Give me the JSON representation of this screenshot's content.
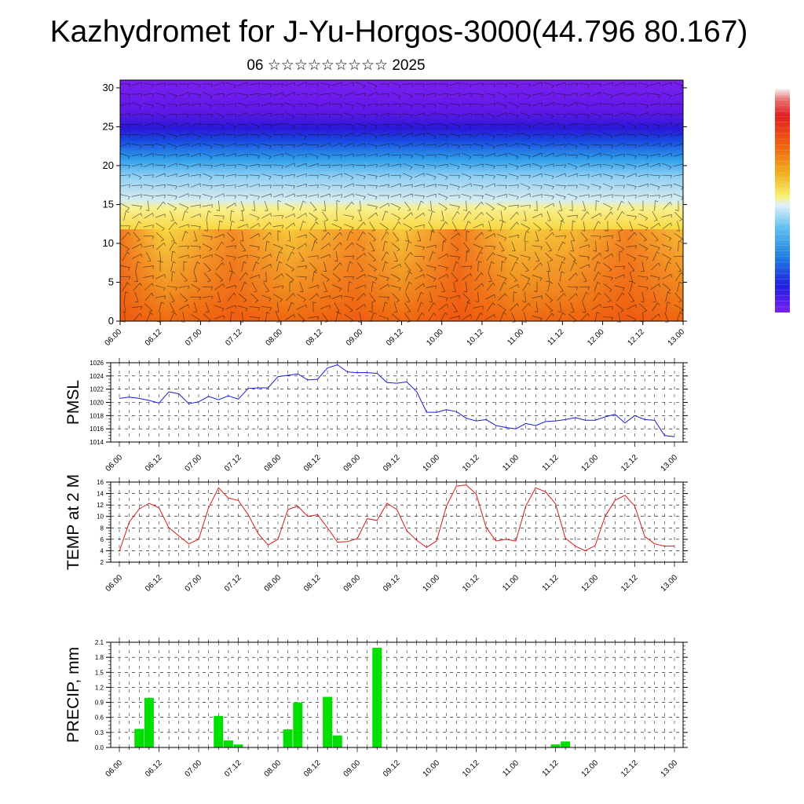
{
  "title": "Kazhydromet for J-Yu-Horgos-3000(44.796 80.167)",
  "subtitle": "06 ☆☆☆☆☆☆☆☆☆ 2025",
  "time_labels": [
    "06.00",
    "06.12",
    "07.00",
    "07.12",
    "08.00",
    "08.12",
    "09.00",
    "09.12",
    "10.00",
    "10.12",
    "11.00",
    "11.12",
    "12.00",
    "12.12",
    "13.00"
  ],
  "chart_data": [
    {
      "type": "heatmap",
      "description_of_content": "Vertical time-height cross-section of temperature (color) with wind barbs",
      "x": [
        "06.00",
        "06.12",
        "07.00",
        "07.12",
        "08.00",
        "08.12",
        "09.00",
        "09.12",
        "10.00",
        "10.12",
        "11.00",
        "11.12",
        "12.00",
        "12.12",
        "13.00"
      ],
      "ylim": [
        0,
        31
      ],
      "yticks": [
        0,
        5,
        10,
        15,
        20,
        25,
        30
      ],
      "colorbar_colors": [
        "#f0f0f0",
        "#e86060",
        "#e02020",
        "#f06010",
        "#f0a020",
        "#f8e040",
        "#f8f8a0",
        "#c0e8f8",
        "#60c0f0",
        "#2090e0",
        "#1040d0",
        "#3010f0",
        "#7a20f0"
      ]
    },
    {
      "type": "line",
      "ylabel": "PMSL",
      "ylim": [
        1014,
        1026
      ],
      "yticks": [
        1014,
        1016,
        1018,
        1020,
        1022,
        1024,
        1026
      ],
      "color": "#1a1adc",
      "values": [
        1020.6,
        1020.8,
        1020.6,
        1020.3,
        1019.9,
        1021.6,
        1021.3,
        1019.8,
        1020.1,
        1020.9,
        1020.4,
        1021.0,
        1020.5,
        1022.1,
        1022.2,
        1022.2,
        1023.9,
        1024.1,
        1024.3,
        1023.4,
        1023.5,
        1025.2,
        1025.7,
        1024.6,
        1024.5,
        1024.5,
        1024.4,
        1023.0,
        1022.9,
        1023.1,
        1021.6,
        1018.5,
        1018.5,
        1018.9,
        1018.6,
        1017.6,
        1017.2,
        1017.4,
        1016.5,
        1016.2,
        1016.0,
        1016.8,
        1016.5,
        1017.1,
        1017.2,
        1017.4,
        1017.7,
        1017.3,
        1017.3,
        1017.8,
        1018.2,
        1016.9,
        1018.0,
        1017.4,
        1017.3,
        1015.0,
        1014.8
      ]
    },
    {
      "type": "line",
      "ylabel": "TEMP at 2 M",
      "ylim": [
        2,
        16
      ],
      "yticks": [
        2,
        4,
        6,
        8,
        10,
        12,
        14,
        16
      ],
      "color": "#dc1a1a",
      "values": [
        3.9,
        9.0,
        11.3,
        12.3,
        11.5,
        8.0,
        6.6,
        5.2,
        6.0,
        11.5,
        15.0,
        13.2,
        12.8,
        10.3,
        7.0,
        5.0,
        6.0,
        11.2,
        11.8,
        10.0,
        10.3,
        8.0,
        5.5,
        5.6,
        6.1,
        9.6,
        9.3,
        12.3,
        11.2,
        7.5,
        5.8,
        4.6,
        5.7,
        11.8,
        15.3,
        15.5,
        13.9,
        8.1,
        5.7,
        6.0,
        5.7,
        11.8,
        15.0,
        14.3,
        12.2,
        6.2,
        4.8,
        4.0,
        4.9,
        10.0,
        12.8,
        13.7,
        11.8,
        6.5,
        5.2,
        4.8,
        4.8
      ]
    },
    {
      "type": "bar",
      "ylabel": "PRECIP, mm",
      "ylim": [
        0,
        2.1
      ],
      "yticks": [
        "0.0",
        "0.3",
        "0.6",
        "0.9",
        "1.2",
        "1.5",
        "1.8",
        "2.1"
      ],
      "color": "#00e000",
      "values": [
        0,
        0,
        0.37,
        0.99,
        0,
        0,
        0,
        0,
        0,
        0,
        0.63,
        0.14,
        0.06,
        0,
        0,
        0,
        0,
        0.36,
        0.9,
        0,
        0,
        1.01,
        0.24,
        0,
        0,
        0,
        1.99,
        0,
        0,
        0,
        0,
        0,
        0,
        0,
        0,
        0,
        0,
        0,
        0,
        0,
        0,
        0,
        0,
        0,
        0.06,
        0.12,
        0,
        0,
        0,
        0,
        0,
        0,
        0,
        0,
        0,
        0,
        0
      ]
    }
  ]
}
